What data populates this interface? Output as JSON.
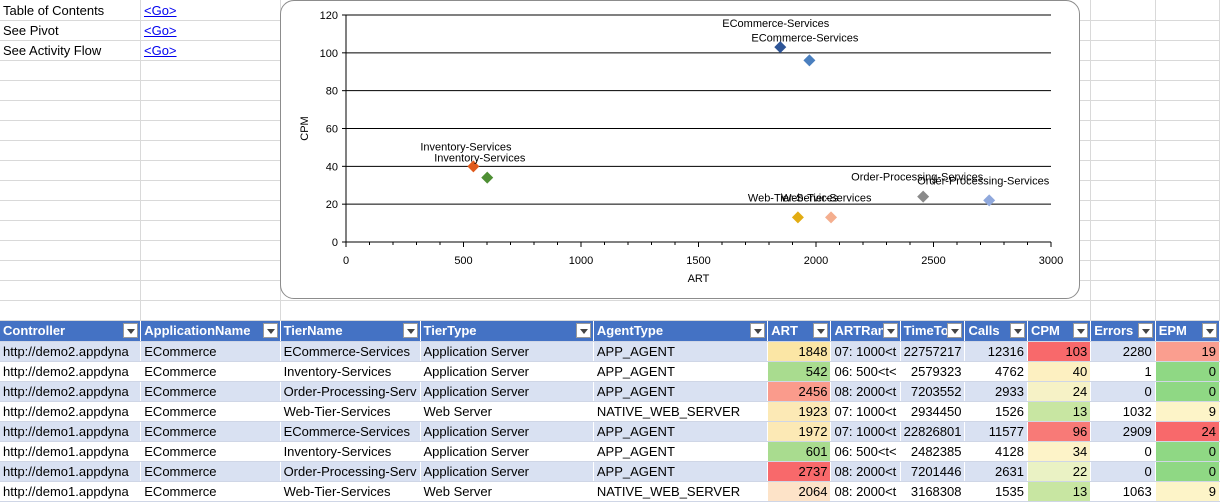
{
  "toc": [
    {
      "label": "Table of Contents",
      "link": "<Go>"
    },
    {
      "label": "See Pivot",
      "link": "<Go>"
    },
    {
      "label": "See Activity Flow",
      "link": "<Go>"
    }
  ],
  "chart_data": {
    "type": "scatter",
    "title": "",
    "xlabel": "ART",
    "ylabel": "CPM",
    "xlim": [
      0,
      3000
    ],
    "ylim": [
      0,
      120
    ],
    "xticks": [
      "0",
      "500",
      "1000",
      "1500",
      "2000",
      "2500",
      "3000"
    ],
    "yticks": [
      "0",
      "20",
      "40",
      "60",
      "80",
      "100",
      "120"
    ],
    "grid": "horizontal",
    "points": [
      {
        "label": "ECommerce-Services",
        "x": 1848,
        "y": 103,
        "color": "#2e5597"
      },
      {
        "label": "ECommerce-Services",
        "x": 1972,
        "y": 96,
        "color": "#4a7fbf"
      },
      {
        "label": "Inventory-Services",
        "x": 542,
        "y": 40,
        "color": "#e05a1c"
      },
      {
        "label": "Inventory-Services",
        "x": 601,
        "y": 34,
        "color": "#4e8f34"
      },
      {
        "label": "Order-Processing-Services",
        "x": 2456,
        "y": 24,
        "color": "#8a8a8a"
      },
      {
        "label": "Order-Processing-Services",
        "x": 2737,
        "y": 22,
        "color": "#8fa8dc"
      },
      {
        "label": "Web-Tier-Services",
        "x": 1923,
        "y": 13,
        "color": "#e2ac12"
      },
      {
        "label": "Web-Tier-Services",
        "x": 2064,
        "y": 13,
        "color": "#f4ae8e"
      }
    ]
  },
  "table": {
    "headers": [
      "Controller",
      "ApplicationName",
      "TierName",
      "TierType",
      "AgentType",
      "ART",
      "ARTRan",
      "TimeTo",
      "Calls",
      "CPM",
      "Errors",
      "EPM"
    ],
    "rows": [
      {
        "cells": [
          "http://demo2.appdyna",
          "ECommerce",
          "ECommerce-Services",
          "Application Server",
          "APP_AGENT",
          "1848",
          "07: 1000<t",
          "22757217",
          "12316",
          "103",
          "2280",
          "19"
        ],
        "art_color": "#fbe6a5",
        "cpm_color": "#f8696b",
        "epm_color": "#fa9e8f"
      },
      {
        "cells": [
          "http://demo2.appdyna",
          "ECommerce",
          "Inventory-Services",
          "Application Server",
          "APP_AGENT",
          "542",
          "06: 500<t<",
          "2579323",
          "4762",
          "40",
          "1",
          "0"
        ],
        "art_color": "#a9dc8f",
        "cpm_color": "#fdf0c1",
        "epm_color": "#8fd884"
      },
      {
        "cells": [
          "http://demo2.appdyna",
          "ECommerce",
          "Order-Processing-Serv",
          "Application Server",
          "APP_AGENT",
          "2456",
          "08: 2000<t",
          "7203552",
          "2933",
          "24",
          "0",
          "0"
        ],
        "art_color": "#fa9b8c",
        "cpm_color": "#f6f2c6",
        "epm_color": "#8fd884"
      },
      {
        "cells": [
          "http://demo2.appdyna",
          "ECommerce",
          "Web-Tier-Services",
          "Web Server",
          "NATIVE_WEB_SERVER",
          "1923",
          "07: 1000<t",
          "2934450",
          "1526",
          "13",
          "1032",
          "9"
        ],
        "art_color": "#fce9b5",
        "cpm_color": "#c8e6a2",
        "epm_color": "#fdf4c8"
      },
      {
        "cells": [
          "http://demo1.appdyna",
          "ECommerce",
          "ECommerce-Services",
          "Application Server",
          "APP_AGENT",
          "1972",
          "07: 1000<t",
          "22826801",
          "11577",
          "96",
          "2909",
          "24"
        ],
        "art_color": "#fce9b5",
        "cpm_color": "#f87a77",
        "epm_color": "#f8696b"
      },
      {
        "cells": [
          "http://demo1.appdyna",
          "ECommerce",
          "Inventory-Services",
          "Application Server",
          "APP_AGENT",
          "601",
          "06: 500<t<",
          "2482385",
          "4128",
          "34",
          "0",
          "0"
        ],
        "art_color": "#a9dc8f",
        "cpm_color": "#fdf3c8",
        "epm_color": "#8fd884"
      },
      {
        "cells": [
          "http://demo1.appdyna",
          "ECommerce",
          "Order-Processing-Serv",
          "Application Server",
          "APP_AGENT",
          "2737",
          "08: 2000<t",
          "7201446",
          "2631",
          "22",
          "0",
          "0"
        ],
        "art_color": "#f8696b",
        "cpm_color": "#eaf2c4",
        "epm_color": "#8fd884"
      },
      {
        "cells": [
          "http://demo1.appdyna",
          "ECommerce",
          "Web-Tier-Services",
          "Web Server",
          "NATIVE_WEB_SERVER",
          "2064",
          "08: 2000<t",
          "3168308",
          "1535",
          "13",
          "1063",
          "9"
        ],
        "art_color": "#fde3c8",
        "cpm_color": "#c8e6a2",
        "epm_color": "#fdf4c8"
      }
    ]
  }
}
